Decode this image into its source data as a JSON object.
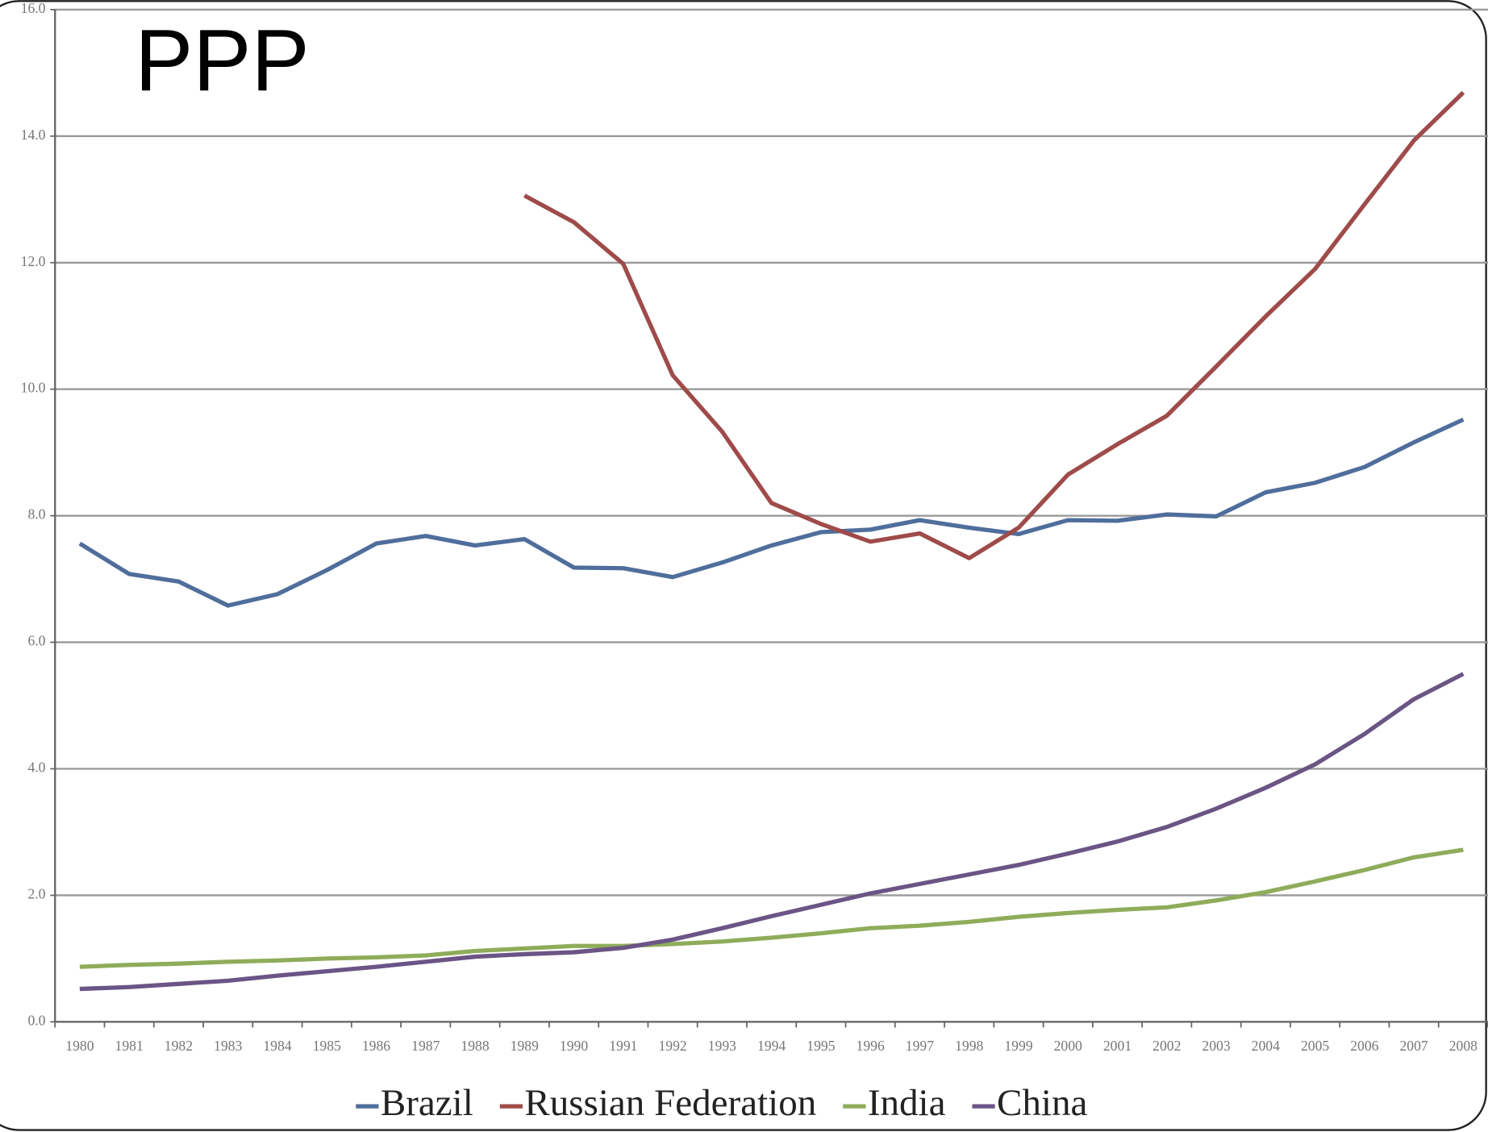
{
  "chart_data": {
    "type": "line",
    "title": "PPP",
    "categories": [
      "1980",
      "1981",
      "1982",
      "1983",
      "1984",
      "1985",
      "1986",
      "1987",
      "1988",
      "1989",
      "1990",
      "1991",
      "1992",
      "1993",
      "1994",
      "1995",
      "1996",
      "1997",
      "1998",
      "1999",
      "2000",
      "2001",
      "2002",
      "2003",
      "2004",
      "2005",
      "2006",
      "2007",
      "2008"
    ],
    "series": [
      {
        "name": "Brazil",
        "color": "#4f6e9c",
        "values": [
          7.56,
          7.08,
          6.96,
          6.58,
          6.76,
          7.14,
          7.56,
          7.68,
          7.53,
          7.63,
          7.18,
          7.17,
          7.03,
          7.26,
          7.53,
          7.74,
          7.78,
          7.93,
          7.81,
          7.71,
          7.93,
          7.92,
          8.02,
          7.99,
          8.37,
          8.52,
          8.77,
          9.16,
          9.52
        ]
      },
      {
        "name": "Russian Federation",
        "color": "#9e4b4a",
        "values": [
          null,
          null,
          null,
          null,
          null,
          null,
          null,
          null,
          null,
          13.06,
          12.64,
          11.98,
          10.22,
          9.33,
          8.2,
          7.87,
          7.59,
          7.72,
          7.33,
          7.81,
          8.65,
          9.13,
          9.58,
          10.36,
          11.15,
          11.9,
          12.92,
          13.93,
          14.69
        ]
      },
      {
        "name": "India",
        "color": "#8fac5a",
        "values": [
          0.87,
          0.9,
          0.92,
          0.95,
          0.97,
          1.0,
          1.02,
          1.05,
          1.12,
          1.16,
          1.2,
          1.2,
          1.23,
          1.27,
          1.33,
          1.4,
          1.48,
          1.52,
          1.58,
          1.66,
          1.72,
          1.77,
          1.81,
          1.92,
          2.05,
          2.22,
          2.4,
          2.6,
          2.72
        ]
      },
      {
        "name": "China",
        "color": "#6a5585",
        "values": [
          0.52,
          0.55,
          0.6,
          0.65,
          0.73,
          0.8,
          0.87,
          0.95,
          1.03,
          1.07,
          1.1,
          1.17,
          1.3,
          1.48,
          1.67,
          1.85,
          2.03,
          2.18,
          2.33,
          2.48,
          2.66,
          2.85,
          3.08,
          3.37,
          3.7,
          4.07,
          4.55,
          5.1,
          5.5
        ]
      }
    ],
    "ylim": [
      0,
      16
    ],
    "yticks": [
      {
        "value": 0,
        "label": "0.0"
      },
      {
        "value": 2,
        "label": "2.0"
      },
      {
        "value": 4,
        "label": "4.0"
      },
      {
        "value": 6,
        "label": "6.0"
      },
      {
        "value": 8,
        "label": "8.0"
      },
      {
        "value": 10,
        "label": "10.0"
      },
      {
        "value": 12,
        "label": "12.0"
      },
      {
        "value": 14,
        "label": "14.0"
      },
      {
        "value": 16,
        "label": "16.0"
      }
    ],
    "grid": true
  }
}
